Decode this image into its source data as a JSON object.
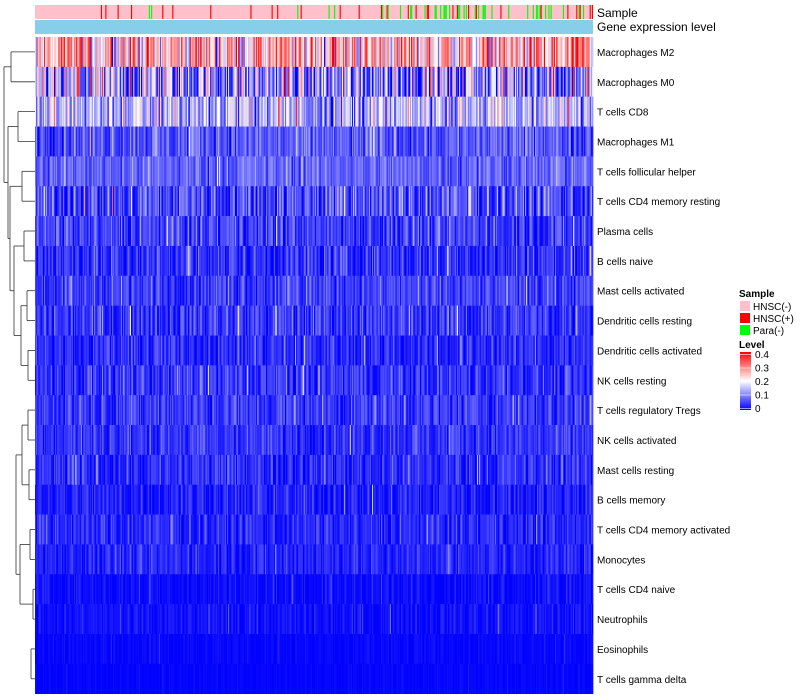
{
  "chart_data": {
    "type": "heatmap",
    "title": "",
    "rows": [
      {
        "name": "Macrophages M2",
        "mean": 0.25,
        "spread": 0.12
      },
      {
        "name": "Macrophages M0",
        "mean": 0.12,
        "spread": 0.14
      },
      {
        "name": "T cells CD8",
        "mean": 0.14,
        "spread": 0.09
      },
      {
        "name": "Macrophages M1",
        "mean": 0.07,
        "spread": 0.05
      },
      {
        "name": "T cells follicular helper",
        "mean": 0.08,
        "spread": 0.04
      },
      {
        "name": "T cells CD4 memory resting",
        "mean": 0.06,
        "spread": 0.07
      },
      {
        "name": "Plasma cells",
        "mean": 0.05,
        "spread": 0.05
      },
      {
        "name": "B cells naive",
        "mean": 0.04,
        "spread": 0.05
      },
      {
        "name": "Mast cells activated",
        "mean": 0.05,
        "spread": 0.04
      },
      {
        "name": "Dendritic cells resting",
        "mean": 0.045,
        "spread": 0.045
      },
      {
        "name": "Dendritic cells activated",
        "mean": 0.035,
        "spread": 0.04
      },
      {
        "name": "NK cells resting",
        "mean": 0.04,
        "spread": 0.04
      },
      {
        "name": "T cells regulatory  Tregs",
        "mean": 0.045,
        "spread": 0.04
      },
      {
        "name": "NK cells activated",
        "mean": 0.04,
        "spread": 0.035
      },
      {
        "name": "Mast cells resting",
        "mean": 0.035,
        "spread": 0.04
      },
      {
        "name": "B cells memory",
        "mean": 0.025,
        "spread": 0.035
      },
      {
        "name": "T cells CD4 memory activated",
        "mean": 0.03,
        "spread": 0.035
      },
      {
        "name": "Monocytes",
        "mean": 0.03,
        "spread": 0.03
      },
      {
        "name": "T cells CD4 naive",
        "mean": 0.01,
        "spread": 0.02
      },
      {
        "name": "Neutrophils",
        "mean": 0.012,
        "spread": 0.02
      },
      {
        "name": "Eosinophils",
        "mean": 0.005,
        "spread": 0.01
      },
      {
        "name": "T cells gamma delta",
        "mean": 0.003,
        "spread": 0.006
      }
    ],
    "n_samples": 500,
    "sample_group_proportions": {
      "HNSC(-)": 0.86,
      "HNSC(+)": 0.06,
      "Para(-)": 0.08
    },
    "column_annotations": [
      {
        "name": "Sample",
        "type": "categorical"
      },
      {
        "name": "Gene expression level",
        "type": "continuous"
      }
    ],
    "legends": [
      {
        "title": "Sample",
        "entries": [
          {
            "label": "HNSC(-)",
            "color": "#ffc0cb"
          },
          {
            "label": "HNSC(+)",
            "color": "#ff0000"
          },
          {
            "label": "Para(-)",
            "color": "#00ff00"
          }
        ]
      },
      {
        "title": "Level",
        "range": [
          0,
          0.4
        ],
        "ticks": [
          "0.4",
          "0.3",
          "0.2",
          "0.1",
          "0"
        ]
      }
    ],
    "color_scale": {
      "low": "#0000ff",
      "mid": "#ffffff",
      "high": "#ff0000",
      "min": 0,
      "mid_value": 0.2,
      "max": 0.4
    },
    "gene_expression_color": "#87ceeb",
    "row_dendrogram": "hierarchical clustering (left)"
  }
}
